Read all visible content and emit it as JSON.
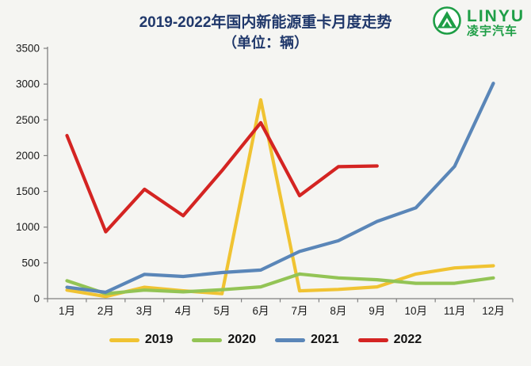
{
  "header": {
    "title_line1": "2019-2022年国内新能源重卡月度走势",
    "title_line2": "（单位：辆）",
    "title_color": "#20386b"
  },
  "logo": {
    "brand_en": "LINYU",
    "brand_cn": "凌宇汽车",
    "color": "#1e9e46"
  },
  "chart_data": {
    "type": "line",
    "title": "2019-2022年国内新能源重卡月度走势（单位：辆）",
    "categories": [
      "1月",
      "2月",
      "3月",
      "4月",
      "5月",
      "6月",
      "7月",
      "8月",
      "9月",
      "10月",
      "11月",
      "12月"
    ],
    "series": [
      {
        "name": "2019",
        "color": "#f0c332",
        "values": [
          120,
          30,
          160,
          110,
          70,
          2780,
          110,
          130,
          165,
          345,
          430,
          460
        ]
      },
      {
        "name": "2020",
        "color": "#93c455",
        "values": [
          250,
          70,
          120,
          95,
          125,
          165,
          345,
          290,
          265,
          215,
          215,
          290
        ]
      },
      {
        "name": "2021",
        "color": "#5a86b8",
        "values": [
          160,
          90,
          340,
          310,
          365,
          400,
          660,
          810,
          1080,
          1270,
          1850,
          3010
        ]
      },
      {
        "name": "2022",
        "color": "#d42422",
        "values": [
          2280,
          935,
          1530,
          1160,
          1790,
          2460,
          1440,
          1845,
          1855
        ]
      }
    ],
    "ylim": [
      0,
      3500
    ],
    "y_ticks": [
      0,
      500,
      1000,
      1500,
      2000,
      2500,
      3000,
      3500
    ],
    "xlabel": "",
    "ylabel": "",
    "grid": false,
    "legend_position": "bottom",
    "axis_color": "#808080",
    "tick_label_color": "#1a1a1a"
  }
}
